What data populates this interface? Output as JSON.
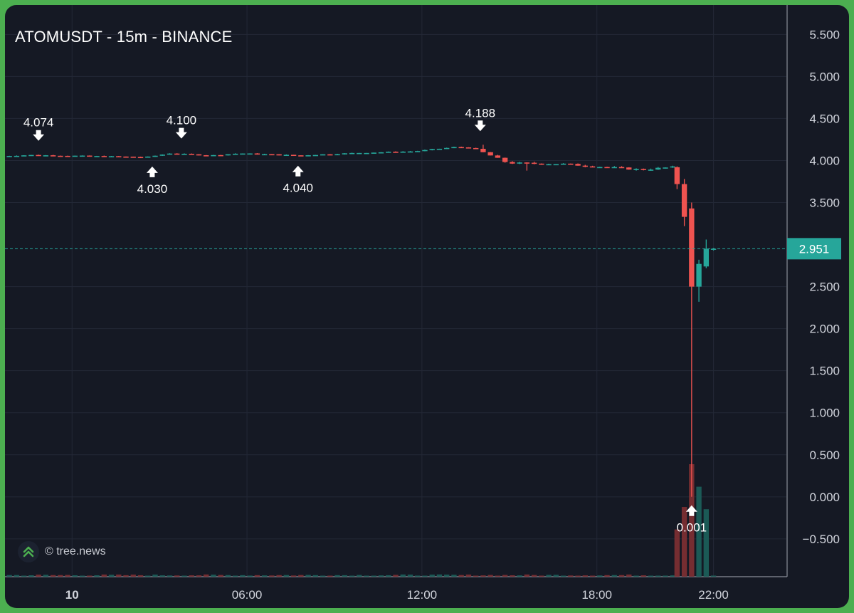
{
  "chart_data": {
    "type": "candlestick",
    "title": "ATOMUSDT - 15m - BINANCE",
    "y_axis": {
      "ticks": [
        "5.500",
        "5.000",
        "4.500",
        "4.000",
        "3.500",
        "2.500",
        "2.000",
        "1.500",
        "1.000",
        "0.500",
        "0.000",
        "−0.500"
      ],
      "tick_values": [
        5.5,
        5.0,
        4.5,
        4.0,
        3.5,
        2.5,
        2.0,
        1.5,
        1.0,
        0.5,
        0.0,
        -0.5
      ],
      "range": [
        -0.95,
        5.85
      ],
      "position": "right"
    },
    "x_axis": {
      "ticks": [
        "10",
        "06:00",
        "12:00",
        "18:00",
        "22:00"
      ],
      "tick_hours": [
        0,
        6,
        12,
        18,
        22
      ],
      "range_hours": [
        -2.3,
        24.5
      ]
    },
    "grid": true,
    "current_price": {
      "label": "2.951",
      "value": 2.951,
      "color": "#26a69a"
    },
    "colors": {
      "up": "#26a69a",
      "down": "#ef5350",
      "volume_up": "#1b5e5a",
      "volume_down": "#7a2e33",
      "grid": "#232836",
      "text": "#d1d4dc",
      "background": "#151924"
    },
    "anchors": [
      {
        "t": -2.4,
        "p": 4.05
      },
      {
        "t": -1.2,
        "p": 4.065
      },
      {
        "t": 0.5,
        "p": 4.055
      },
      {
        "t": 2.8,
        "p": 4.04
      },
      {
        "t": 3.6,
        "p": 4.085
      },
      {
        "t": 5.0,
        "p": 4.06
      },
      {
        "t": 6.0,
        "p": 4.085
      },
      {
        "t": 8.0,
        "p": 4.06
      },
      {
        "t": 10.0,
        "p": 4.09
      },
      {
        "t": 12.0,
        "p": 4.11
      },
      {
        "t": 13.4,
        "p": 4.16
      },
      {
        "t": 14.0,
        "p": 4.15
      },
      {
        "t": 15.2,
        "p": 3.97
      },
      {
        "t": 17.0,
        "p": 3.96
      },
      {
        "t": 19.8,
        "p": 3.89
      },
      {
        "t": 20.75,
        "p": 3.92
      }
    ],
    "big_candles": [
      {
        "t": 20.75,
        "o": 3.92,
        "h": 3.93,
        "l": 3.66,
        "c": 3.72
      },
      {
        "t": 21.0,
        "o": 3.72,
        "h": 3.78,
        "l": 3.22,
        "c": 3.33
      },
      {
        "t": 21.25,
        "o": 3.43,
        "h": 3.5,
        "l": 0.001,
        "c": 2.5
      },
      {
        "t": 21.5,
        "o": 2.5,
        "h": 2.82,
        "l": 2.32,
        "c": 2.77
      },
      {
        "t": 21.75,
        "o": 2.74,
        "h": 3.06,
        "l": 2.72,
        "c": 2.95
      },
      {
        "t": 22.0,
        "o": 2.95,
        "h": 2.96,
        "l": 2.93,
        "c": 2.951
      }
    ],
    "volume_spikes": [
      {
        "t": 13.0,
        "v": 0.02
      },
      {
        "t": 13.5,
        "v": 0.06
      },
      {
        "t": 13.75,
        "v": 0.05
      },
      {
        "t": 14.5,
        "v": 0.06
      },
      {
        "t": 14.75,
        "v": 0.05
      },
      {
        "t": 15.0,
        "v": 0.16
      },
      {
        "t": 15.25,
        "v": 0.2
      },
      {
        "t": 15.5,
        "v": 0.25
      },
      {
        "t": 15.75,
        "v": 0.08
      },
      {
        "t": 16.0,
        "v": 0.04
      },
      {
        "t": 16.25,
        "v": 0.03
      },
      {
        "t": 18.25,
        "v": 0.05
      },
      {
        "t": 19.25,
        "v": 0.08
      },
      {
        "t": 19.5,
        "v": 0.15
      },
      {
        "t": 19.75,
        "v": 0.05
      },
      {
        "t": 20.75,
        "v": 0.42
      },
      {
        "t": 21.0,
        "v": 0.62
      },
      {
        "t": 21.25,
        "v": 1.0
      },
      {
        "t": 21.5,
        "v": 0.8
      },
      {
        "t": 21.75,
        "v": 0.6
      },
      {
        "t": 22.0,
        "v": 0.01
      }
    ],
    "annotations": [
      {
        "label": "4.074",
        "t": -1.15,
        "p": 4.074,
        "dir": "down"
      },
      {
        "label": "4.100",
        "t": 3.75,
        "p": 4.1,
        "dir": "down"
      },
      {
        "label": "4.188",
        "t": 14.0,
        "p": 4.188,
        "dir": "down"
      },
      {
        "label": "4.030",
        "t": 2.75,
        "p": 4.03,
        "dir": "up"
      },
      {
        "label": "4.040",
        "t": 7.75,
        "p": 4.04,
        "dir": "up"
      },
      {
        "label": "0.001",
        "t": 21.25,
        "p": 0.001,
        "dir": "up"
      }
    ]
  },
  "watermark": {
    "text": "© tree.news",
    "icon": "double-chevron-up-icon"
  }
}
